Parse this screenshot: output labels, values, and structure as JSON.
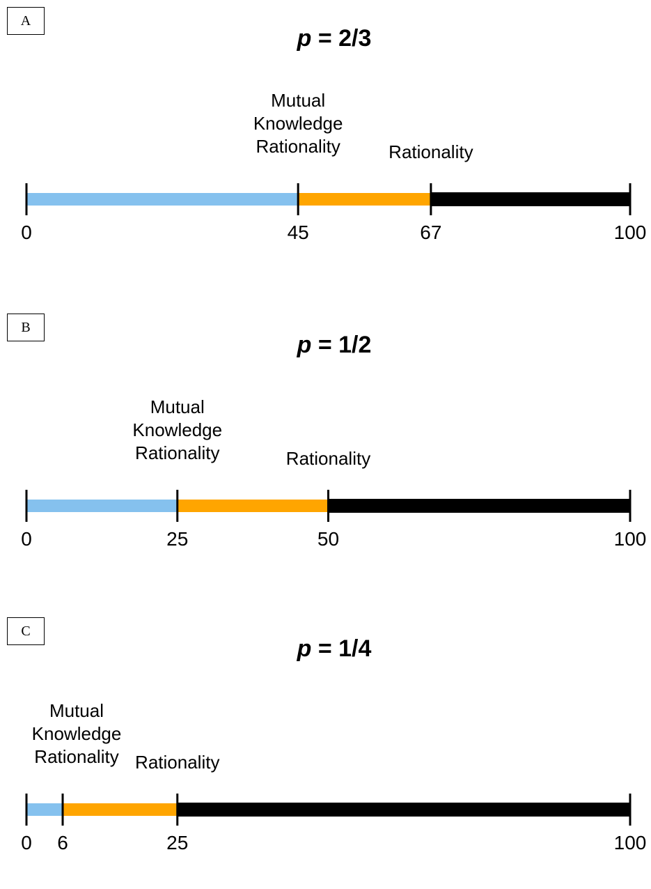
{
  "colors": {
    "mutual": "#85C1EE",
    "rational": "#FFA500",
    "irrational": "#000000"
  },
  "panels": [
    {
      "label": "A",
      "title_var": "p",
      "title_rest": " = 2/3",
      "mutual_label": "Mutual\nKnowledge\nRationality",
      "rational_label": "Rationality",
      "scale_min": 0,
      "scale_max": 100,
      "mutual_end": 45,
      "rational_end": 67,
      "ticks": [
        "0",
        "45",
        "67",
        "100"
      ]
    },
    {
      "label": "B",
      "title_var": "p",
      "title_rest": " = 1/2",
      "mutual_label": "Mutual\nKnowledge\nRationality",
      "rational_label": "Rationality",
      "scale_min": 0,
      "scale_max": 100,
      "mutual_end": 25,
      "rational_end": 50,
      "ticks": [
        "0",
        "25",
        "50",
        "100"
      ]
    },
    {
      "label": "C",
      "title_var": "p",
      "title_rest": " = 1/4",
      "mutual_label": "Mutual\nKnowledge\nRationality",
      "rational_label": "Rationality",
      "scale_min": 0,
      "scale_max": 100,
      "mutual_end": 6,
      "rational_end": 25,
      "ticks": [
        "0",
        "6",
        "25",
        "100"
      ]
    }
  ]
}
